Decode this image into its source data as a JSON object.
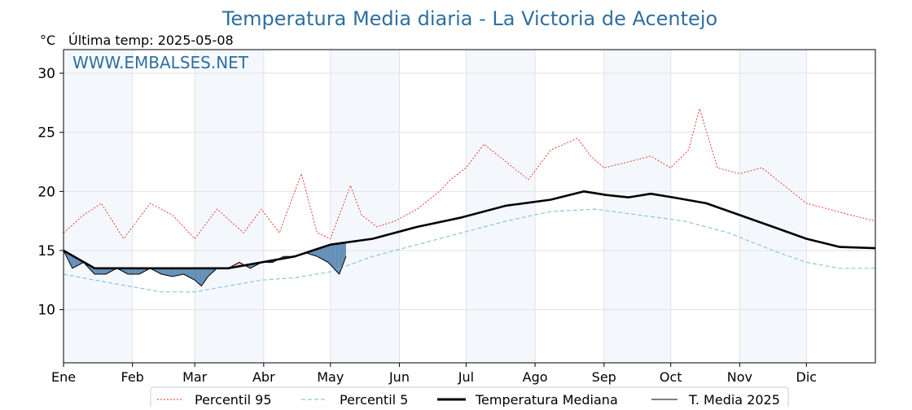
{
  "chart_data": {
    "type": "line",
    "title": "Temperatura Media diaria - La Victoria de Acentejo",
    "unit_label": "°C",
    "subtitle": "Última temp: 2025-05-08",
    "watermark": "WWW.EMBALSES.NET",
    "ylim": [
      5.5,
      32
    ],
    "yticks": [
      10,
      15,
      20,
      25,
      30
    ],
    "x_domain": [
      1,
      366
    ],
    "xticks": [
      {
        "label": "Ene",
        "day": 1
      },
      {
        "label": "Feb",
        "day": 32
      },
      {
        "label": "Mar",
        "day": 60
      },
      {
        "label": "Abr",
        "day": 91
      },
      {
        "label": "May",
        "day": 121
      },
      {
        "label": "Jun",
        "day": 152
      },
      {
        "label": "Jul",
        "day": 182
      },
      {
        "label": "Ago",
        "day": 213
      },
      {
        "label": "Sep",
        "day": 244
      },
      {
        "label": "Oct",
        "day": 274
      },
      {
        "label": "Nov",
        "day": 305
      },
      {
        "label": "Dic",
        "day": 335
      }
    ],
    "grid": true,
    "legend_position": "bottom-center",
    "colors": {
      "p95": "#e8281e",
      "p5": "#8fc3dc",
      "median": "#000000",
      "current": "#000000",
      "above": "#f4b8b8",
      "below": "#4f7fad",
      "band": "#dce9f5",
      "title": "#2f6f9f"
    },
    "series": [
      {
        "key": "p95",
        "name": "Percentil 95",
        "x": [
          1,
          10,
          18,
          28,
          40,
          50,
          60,
          70,
          82,
          90,
          98,
          108,
          115,
          121,
          130,
          135,
          142,
          150,
          160,
          170,
          175,
          182,
          190,
          200,
          210,
          220,
          232,
          238,
          244,
          255,
          265,
          274,
          282,
          287,
          295,
          305,
          315,
          325,
          335,
          345,
          355,
          366
        ],
        "y": [
          16.5,
          18.0,
          19.0,
          16.0,
          19.0,
          18.0,
          16.0,
          18.5,
          16.5,
          18.5,
          16.5,
          21.5,
          16.5,
          16.0,
          20.5,
          18.0,
          17.0,
          17.5,
          18.5,
          20.0,
          21.0,
          22.0,
          24.0,
          22.5,
          21.0,
          23.5,
          24.5,
          23.0,
          22.0,
          22.5,
          23.0,
          22.0,
          23.5,
          27.0,
          22.0,
          21.5,
          22.0,
          20.5,
          19.0,
          18.5,
          18.0,
          17.5
        ]
      },
      {
        "key": "p5",
        "name": "Percentil 5",
        "x": [
          1,
          15,
          30,
          45,
          60,
          75,
          90,
          105,
          121,
          140,
          160,
          180,
          200,
          220,
          240,
          260,
          280,
          300,
          320,
          335,
          350,
          366
        ],
        "y": [
          13.0,
          12.5,
          12.0,
          11.5,
          11.5,
          12.0,
          12.5,
          12.7,
          13.2,
          14.5,
          15.5,
          16.5,
          17.5,
          18.3,
          18.5,
          18.0,
          17.5,
          16.5,
          15.0,
          14.0,
          13.5,
          13.5
        ]
      },
      {
        "key": "median",
        "name": "Temperatura Mediana",
        "x": [
          1,
          15,
          30,
          45,
          60,
          75,
          90,
          105,
          121,
          140,
          160,
          180,
          200,
          220,
          235,
          245,
          255,
          265,
          275,
          290,
          305,
          320,
          335,
          350,
          366
        ],
        "y": [
          15.0,
          13.5,
          13.5,
          13.5,
          13.5,
          13.5,
          14.0,
          14.5,
          15.5,
          16.0,
          17.0,
          17.8,
          18.8,
          19.3,
          20.0,
          19.7,
          19.5,
          19.8,
          19.5,
          19.0,
          18.0,
          17.0,
          16.0,
          15.3,
          15.2
        ]
      },
      {
        "key": "current",
        "name": "T. Media 2025",
        "x": [
          1,
          5,
          10,
          15,
          20,
          25,
          30,
          35,
          40,
          45,
          50,
          55,
          60,
          63,
          66,
          70,
          75,
          80,
          85,
          90,
          95,
          100,
          105,
          110,
          115,
          120,
          125,
          128
        ],
        "y": [
          15.0,
          13.5,
          14.0,
          13.0,
          13.0,
          13.5,
          13.0,
          13.0,
          13.5,
          13.0,
          12.8,
          13.0,
          12.5,
          12.0,
          12.8,
          13.5,
          13.5,
          14.0,
          13.5,
          14.0,
          14.0,
          14.5,
          14.5,
          14.8,
          14.5,
          14.0,
          13.0,
          14.5
        ]
      }
    ],
    "legend": [
      "Percentil 95",
      "Percentil 5",
      "Temperatura Mediana",
      "T. Media 2025"
    ]
  }
}
